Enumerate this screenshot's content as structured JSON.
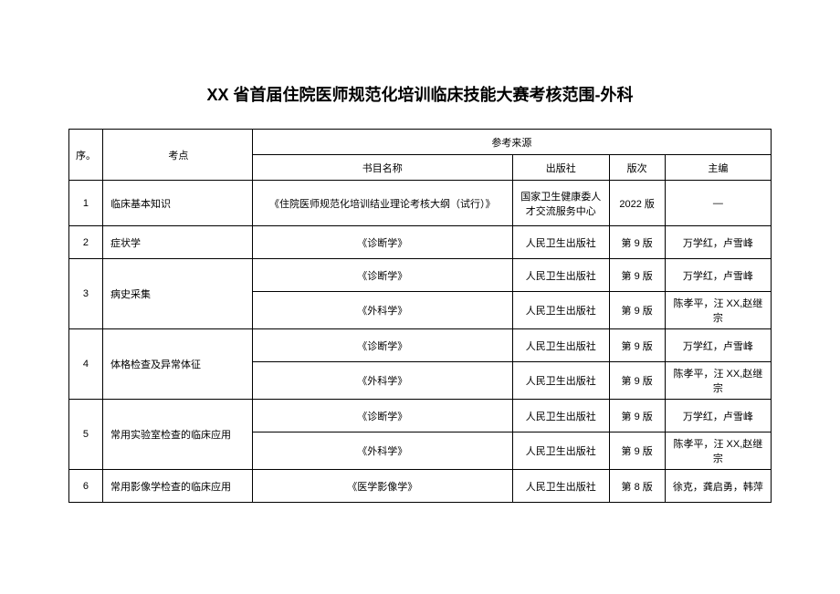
{
  "title": "XX 省首届住院医师规范化培训临床技能大赛考核范围-外科",
  "table": {
    "headers": {
      "seq": "序。",
      "exam_point": "考点",
      "reference_source": "参考来源",
      "book_name": "书目名称",
      "press": "出版社",
      "edition": "版次",
      "editor": "主编"
    },
    "rows": [
      {
        "seq": "1",
        "exam_point": "临床基本知识",
        "book": "《住院医师规范化培训结业理论考核大纲（试行）》",
        "press": "国家卫生健康委人才交流服务中心",
        "edition": "2022 版",
        "editor": "—",
        "rowspan": 1,
        "tall": true
      },
      {
        "seq": "2",
        "exam_point": "症状学",
        "book": "《诊断学》",
        "press": "人民卫生出版社",
        "edition": "第 9 版",
        "editor": "万学红，卢雪峰",
        "rowspan": 1
      },
      {
        "seq": "3",
        "exam_point": "病史采集",
        "book": "《诊断学》",
        "press": "人民卫生出版社",
        "edition": "第 9 版",
        "editor": "万学红，卢雪峰",
        "rowspan": 2
      },
      {
        "book": "《外科学》",
        "press": "人民卫生出版社",
        "edition": "第 9 版",
        "editor": "陈孝平，汪 XX,赵继宗"
      },
      {
        "seq": "4",
        "exam_point": "体格检查及异常体征",
        "book": "《诊断学》",
        "press": "人民卫生出版社",
        "edition": "第 9 版",
        "editor": "万学红，卢雪峰",
        "rowspan": 2
      },
      {
        "book": "《外科学》",
        "press": "人民卫生出版社",
        "edition": "第 9 版",
        "editor": "陈孝平，汪 XX,赵继宗"
      },
      {
        "seq": "5",
        "exam_point": "常用实验室检查的临床应用",
        "book": "《诊断学》",
        "press": "人民卫生出版社",
        "edition": "第 9 版",
        "editor": "万学红，卢雪峰",
        "rowspan": 2
      },
      {
        "book": "《外科学》",
        "press": "人民卫生出版社",
        "edition": "第 9 版",
        "editor": "陈孝平，汪 XX,赵继宗"
      },
      {
        "seq": "6",
        "exam_point": "常用影像学检查的临床应用",
        "book": "《医学影像学》",
        "press": "人民卫生出版社",
        "edition": "第 8 版",
        "editor": "徐克，龚启勇，韩萍",
        "rowspan": 1
      }
    ],
    "styling": {
      "border_color": "#000000",
      "background_color": "#ffffff",
      "text_color": "#000000",
      "title_fontsize": 18,
      "cell_fontsize": 11,
      "col_widths": {
        "seq": 32,
        "exam": 155,
        "book": 270,
        "press": 100,
        "edition": 58,
        "editor": 110
      }
    }
  }
}
